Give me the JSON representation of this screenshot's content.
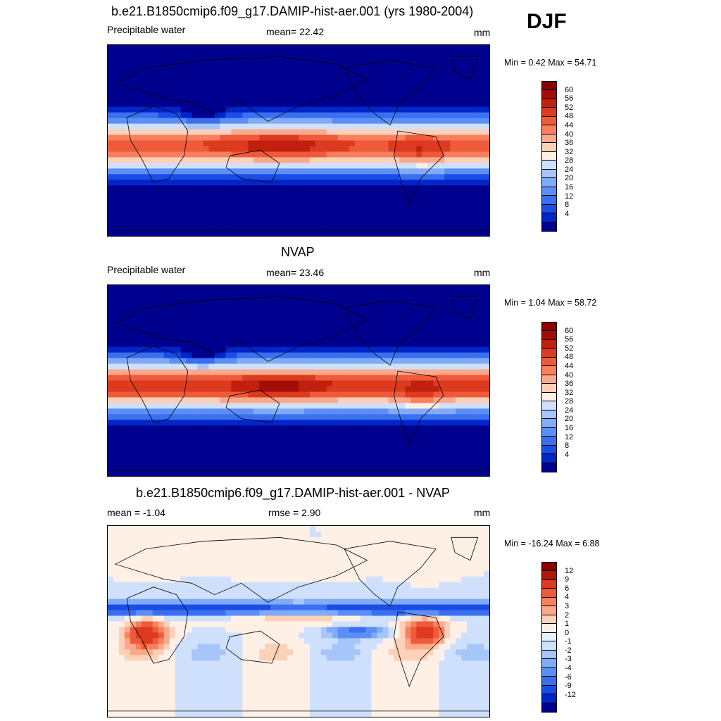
{
  "season": "DJF",
  "colors": {
    "abs_scale": [
      "#00008f",
      "#0026c8",
      "#1a4de6",
      "#3a70f0",
      "#5c8ff5",
      "#80abf8",
      "#a6c6fb",
      "#cfe0fd",
      "#fff0e6",
      "#fdd0b8",
      "#fca98b",
      "#f8805f",
      "#ef5a3a",
      "#dc3b1f",
      "#c0200c",
      "#a30d05",
      "#8b0000"
    ],
    "diff_scale": [
      "#00008f",
      "#0026c8",
      "#1a4de6",
      "#3a70f0",
      "#5c8ff5",
      "#80abf8",
      "#a6c6fb",
      "#cfe0fd",
      "#e6f0ff",
      "#fff0e6",
      "#fdd0b8",
      "#fca98b",
      "#f8805f",
      "#ef5a3a",
      "#dc3b1f",
      "#b01808",
      "#8b0000"
    ]
  },
  "panels": [
    {
      "title": "b.e21.B1850cmip6.f09_g17.DAMIP-hist-aer.001 (yrs 1980-2004)",
      "left_label": "Precipitable water",
      "center_label": "mean=  22.42",
      "units": "mm",
      "minmax": "Min =   0.42 Max =  54.71",
      "colorbar_ticks": [
        "60",
        "56",
        "52",
        "48",
        "44",
        "40",
        "36",
        "32",
        "28",
        "24",
        "20",
        "16",
        "12",
        "8",
        "4"
      ],
      "map_type": "absolute"
    },
    {
      "title": "NVAP",
      "left_label": "Precipitable water",
      "center_label": "mean=  23.46",
      "units": "mm",
      "minmax": "Min =   1.04 Max =  58.72",
      "colorbar_ticks": [
        "60",
        "56",
        "52",
        "48",
        "44",
        "40",
        "36",
        "32",
        "28",
        "24",
        "20",
        "16",
        "12",
        "8",
        "4"
      ],
      "map_type": "absolute"
    },
    {
      "title": "b.e21.B1850cmip6.f09_g17.DAMIP-hist-aer.001 - NVAP",
      "left_label": "mean =  -1.04",
      "center_label": "rmse =   2.90",
      "units": "mm",
      "minmax": "Min = -16.24 Max =   6.88",
      "colorbar_ticks": [
        "12",
        "9",
        "6",
        "4",
        "3",
        "2",
        "1",
        "0",
        "-1",
        "-2",
        "-3",
        "-4",
        "-6",
        "-9",
        "-12"
      ],
      "map_type": "difference"
    }
  ]
}
